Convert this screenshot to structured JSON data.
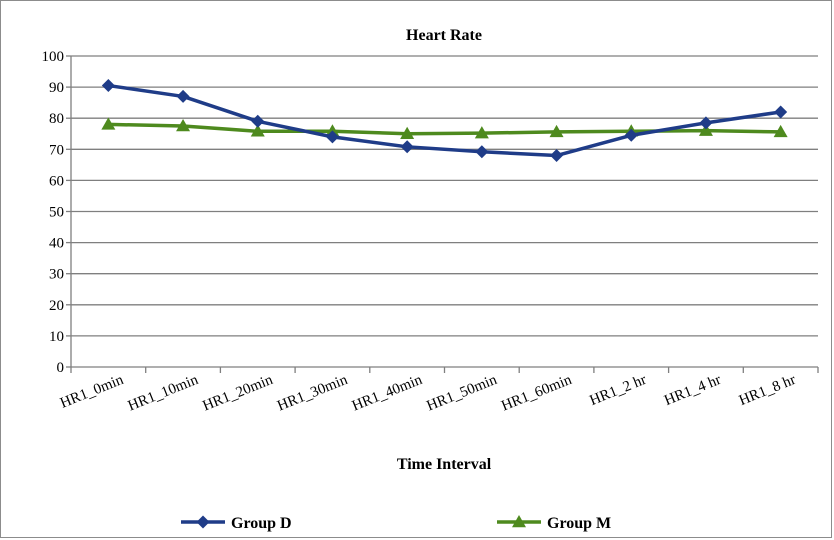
{
  "chart_data": {
    "type": "line",
    "title": "Heart Rate",
    "xlabel": "Time Interval",
    "ylabel": "",
    "ylim": [
      0,
      100
    ],
    "yticks": [
      0,
      10,
      20,
      30,
      40,
      50,
      60,
      70,
      80,
      90,
      100
    ],
    "grid": true,
    "legend_position": "bottom",
    "categories": [
      "HR1_0min",
      "HR1_10min",
      "HR1_20min",
      "HR1_30min",
      "HR1_40min",
      "HR1_50min",
      "HR1_60min",
      "HR1_2 hr",
      "HR1_4 hr",
      "HR1_8 hr"
    ],
    "series": [
      {
        "name": "Group D",
        "color": "#1f3c88",
        "marker": "diamond",
        "values": [
          90.5,
          87,
          79,
          74,
          70.8,
          69.2,
          68,
          74.5,
          78.5,
          82
        ]
      },
      {
        "name": "Group M",
        "color": "#4e8a1e",
        "marker": "triangle",
        "values": [
          78,
          77.5,
          75.8,
          75.8,
          75,
          75.2,
          75.6,
          75.8,
          76,
          75.6
        ]
      }
    ]
  }
}
